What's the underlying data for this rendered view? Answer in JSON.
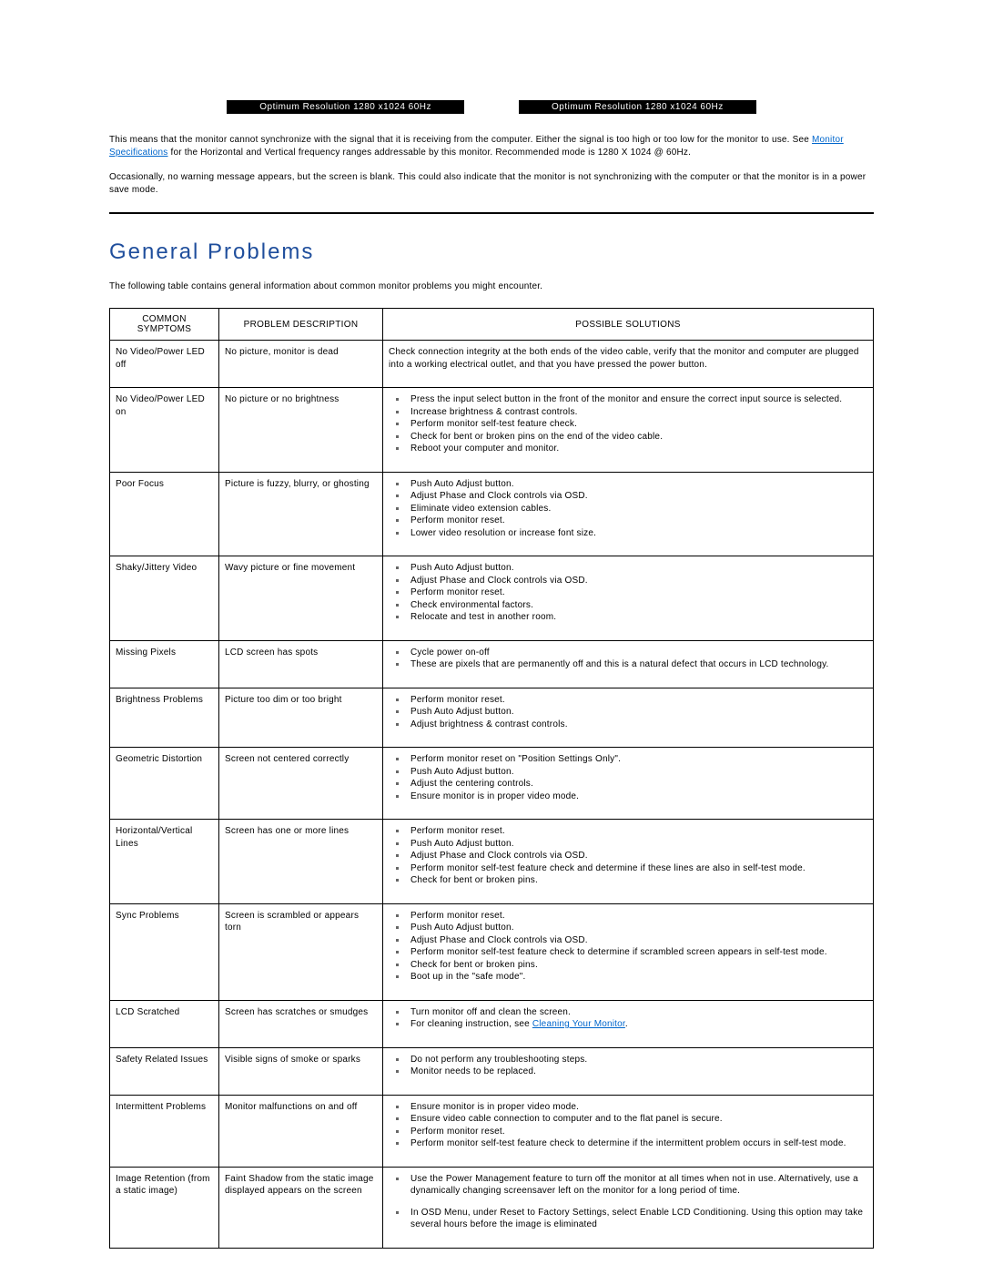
{
  "banners": {
    "left": "Optimum Resolution 1280 x1024 60Hz",
    "right": "Optimum Resolution 1280 x1024 60Hz"
  },
  "intro_para_1_a": "This means that the monitor cannot synchronize with the signal that it is receiving from the computer. Either the signal is too high or too low for the monitor to use. See ",
  "intro_para_1_link": "Monitor Specifications",
  "intro_para_1_b": " for the Horizontal and Vertical frequency ranges addressable by this monitor. Recommended mode is 1280 X 1024 @ 60Hz.",
  "intro_para_2": "Occasionally, no warning message appears, but the screen is blank. This could also indicate that the monitor is not synchronizing with the computer or that the monitor is in a power save mode.",
  "heading": "General Problems",
  "section_intro": "The following table contains general information about common monitor problems you might encounter.",
  "columns": {
    "symptom": "COMMON SYMPTOMS",
    "description": "PROBLEM DESCRIPTION",
    "solutions": "POSSIBLE SOLUTIONS"
  },
  "rows": [
    {
      "symptom": "No Video/Power LED off",
      "description": "No picture, monitor is dead",
      "plain": "Check connection integrity at the both ends of the video cable, verify that the monitor and computer are plugged into a working electrical outlet, and that you have pressed the power button."
    },
    {
      "symptom": "No Video/Power LED on",
      "description": "No picture or no brightness",
      "items": [
        "Press the input select button in the front of the monitor and ensure the correct input source is selected.",
        "Increase brightness & contrast controls.",
        "Perform monitor self-test feature check.",
        "Check for bent or broken pins on the end of the video cable.",
        "Reboot your computer and monitor."
      ]
    },
    {
      "symptom": "Poor Focus",
      "description": "Picture is fuzzy, blurry, or ghosting",
      "items": [
        "Push Auto Adjust button.",
        "Adjust Phase and Clock controls via OSD.",
        "Eliminate video extension cables.",
        "Perform monitor reset.",
        "Lower video resolution or increase font size."
      ]
    },
    {
      "symptom": "Shaky/Jittery Video",
      "description": "Wavy picture or fine movement",
      "items": [
        "Push Auto Adjust button.",
        "Adjust Phase and Clock controls via OSD.",
        "Perform monitor reset.",
        "Check environmental factors.",
        "Relocate and test in another room."
      ]
    },
    {
      "symptom": "Missing Pixels",
      "description": "LCD screen has spots",
      "items": [
        "Cycle power on-off",
        "These are pixels that are permanently off and this is a natural defect that occurs in LCD technology."
      ]
    },
    {
      "symptom": "Brightness Problems",
      "description": "Picture too dim or too bright",
      "items": [
        "Perform monitor reset.",
        "Push Auto Adjust button.",
        "Adjust brightness & contrast controls."
      ]
    },
    {
      "symptom": "Geometric Distortion",
      "description": "Screen not centered correctly",
      "items": [
        "Perform monitor reset on \"Position Settings Only\".",
        "Push Auto Adjust button.",
        "Adjust the centering controls.",
        "Ensure monitor is in proper video mode."
      ]
    },
    {
      "symptom": "Horizontal/Vertical Lines",
      "description": "Screen has one or more lines",
      "items": [
        "Perform monitor reset.",
        "Push Auto Adjust button.",
        "Adjust Phase and Clock controls via OSD.",
        "Perform monitor self-test feature check and determine if these lines are also in self-test mode.",
        "Check for bent or broken pins."
      ]
    },
    {
      "symptom": "Sync Problems",
      "description": "Screen is scrambled or appears torn",
      "items": [
        "Perform monitor reset.",
        "Push Auto Adjust button.",
        "Adjust Phase and Clock controls via OSD.",
        "Perform monitor self-test feature check to determine if scrambled screen appears in self-test mode.",
        "Check for bent or broken pins.",
        "Boot up in the \"safe mode\"."
      ]
    },
    {
      "symptom": "LCD Scratched",
      "description": "Screen has scratches or smudges",
      "items_rich": [
        {
          "text": "Turn monitor off and clean the screen."
        },
        {
          "text_a": "For cleaning instruction, see ",
          "link": "Cleaning Your Monitor",
          "text_b": "."
        }
      ]
    },
    {
      "symptom": "Safety Related Issues",
      "description": "Visible signs of smoke or sparks",
      "items": [
        "Do not perform any troubleshooting steps.",
        "Monitor needs to be replaced."
      ]
    },
    {
      "symptom": "Intermittent Problems",
      "description": "Monitor malfunctions on and off",
      "items": [
        "Ensure monitor is in proper video mode.",
        "Ensure video cable connection to computer and to the flat panel is secure.",
        "Perform monitor reset.",
        "Perform monitor self-test feature check to determine if the intermittent problem occurs in self-test mode."
      ]
    },
    {
      "symptom": "Image Retention (from a static image)",
      "description": "Faint Shadow from the static image displayed appears on the screen",
      "items": [
        "Use the Power Management feature to turn off the monitor at all times when not in use. Alternatively, use a dynamically changing screensaver left on the monitor for a long period of time.",
        "",
        "In OSD Menu, under Reset to Factory Settings, select Enable LCD Conditioning. Using this option may take several hours before the image is eliminated"
      ]
    }
  ],
  "colors": {
    "heading": "#1f4e9c",
    "link": "#0066cc",
    "border": "#000000",
    "background": "#ffffff",
    "text": "#000000"
  }
}
